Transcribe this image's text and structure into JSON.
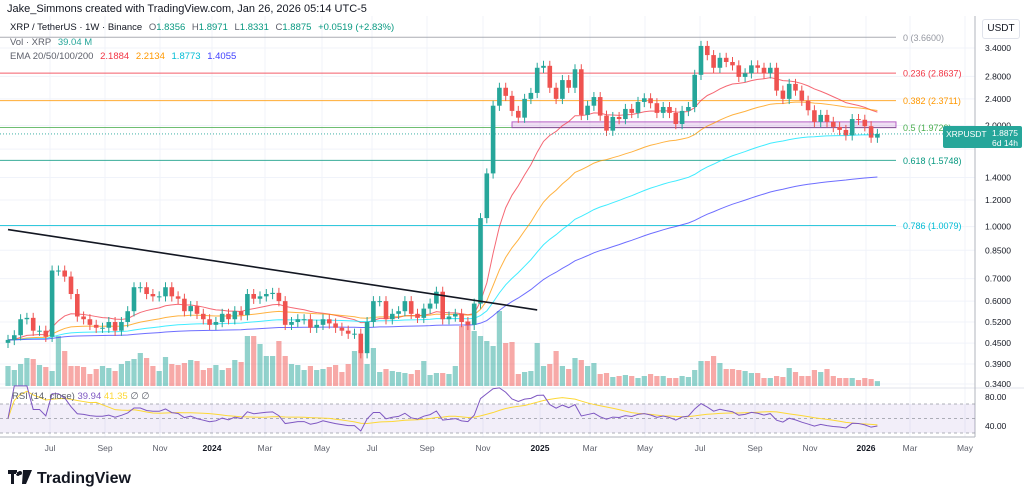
{
  "header": {
    "credit": "Jake_Simmons created with TradingView.com, Jan 26, 2026 05:14 UTC-5",
    "symbol": "XRP / TetherUS · 1W · Binance",
    "o_label": "O",
    "o": "1.8356",
    "h_label": "H",
    "h": "1.8971",
    "l_label": "L",
    "l": "1.8331",
    "c_label": "C",
    "c": "1.8875",
    "change": "+0.0519 (+2.83%)",
    "vol_label": "Vol · XRP",
    "vol": "39.04 M",
    "ema_label": "EMA 20/50/100/200",
    "ema20": "2.1884",
    "ema50": "2.2134",
    "ema100": "1.8773",
    "ema200": "1.4055"
  },
  "colors": {
    "up": "#26a69a",
    "down": "#ef5350",
    "ema20": "#f23645",
    "ema50": "#ff9800",
    "ema100": "#00e5ff",
    "ema200": "#3d3dff",
    "rsi": "#7e57c2",
    "rsi_ma": "#fdd835",
    "trendline": "#131722"
  },
  "price_tag": {
    "symbol": "XRPUSDT",
    "price": "1.8875",
    "countdown": "6d 14h"
  },
  "rsi": {
    "label": "RSI (14, close)",
    "value": "39.94",
    "ma": "41.35",
    "icons": [
      "∅",
      "∅"
    ]
  },
  "logo": {
    "mark": "TV",
    "text": "TradingView"
  },
  "chart_data": {
    "type": "candlestick",
    "title": "XRP / TetherUS · 1W · Binance",
    "y_scale": "log",
    "y_unit": "USDT",
    "y_ticks": [
      "3.4000",
      "2.8000",
      "2.4000",
      "2.0000",
      "1.7000",
      "1.4000",
      "1.2000",
      "1.0000",
      "0.8500",
      "0.7000",
      "0.6000",
      "0.5200",
      "0.4500",
      "0.3900",
      "0.3400"
    ],
    "x_ticks": [
      "Jul",
      "Sep",
      "Nov",
      "2024",
      "Mar",
      "May",
      "Jul",
      "Sep",
      "Nov",
      "2025",
      "Mar",
      "May",
      "Jul",
      "Sep",
      "Nov",
      "2026",
      "Mar",
      "May"
    ],
    "rsi_ticks": [
      "80.00",
      "40.00"
    ],
    "grid": true,
    "closes": [
      0.46,
      0.475,
      0.53,
      0.535,
      0.49,
      0.49,
      0.47,
      0.74,
      0.74,
      0.71,
      0.63,
      0.54,
      0.53,
      0.51,
      0.5,
      0.5,
      0.52,
      0.49,
      0.52,
      0.56,
      0.66,
      0.66,
      0.63,
      0.62,
      0.62,
      0.66,
      0.62,
      0.61,
      0.56,
      0.58,
      0.55,
      0.53,
      0.51,
      0.52,
      0.55,
      0.53,
      0.56,
      0.545,
      0.63,
      0.61,
      0.62,
      0.63,
      0.635,
      0.6,
      0.51,
      0.52,
      0.53,
      0.53,
      0.5,
      0.51,
      0.53,
      0.515,
      0.5,
      0.49,
      0.48,
      0.48,
      0.42,
      0.52,
      0.6,
      0.6,
      0.53,
      0.55,
      0.56,
      0.6,
      0.55,
      0.535,
      0.57,
      0.59,
      0.64,
      0.53,
      0.54,
      0.55,
      0.52,
      0.51,
      0.59,
      1.06,
      1.44,
      2.29,
      2.59,
      2.45,
      2.21,
      2.11,
      2.4,
      2.5,
      2.97,
      3.01,
      2.59,
      2.4,
      2.73,
      2.59,
      2.94,
      2.15,
      2.29,
      2.43,
      2.14,
      1.93,
      2.12,
      2.09,
      2.24,
      2.18,
      2.35,
      2.41,
      2.33,
      2.18,
      2.27,
      2.18,
      2.02,
      2.21,
      2.27,
      2.83,
      3.45,
      3.24,
      2.97,
      3.18,
      3.09,
      3.02,
      2.79,
      2.86,
      3.02,
      2.97,
      2.86,
      2.97,
      2.54,
      2.4,
      2.66,
      2.54,
      2.37,
      2.22,
      2.05,
      2.15,
      2.05,
      1.98,
      1.94,
      1.87,
      2.09,
      2.08,
      1.99,
      1.84,
      1.8875
    ],
    "volume_m": [
      160,
      128,
      176,
      224,
      216,
      168,
      152,
      120,
      400,
      280,
      160,
      160,
      152,
      96,
      136,
      160,
      144,
      120,
      176,
      200,
      216,
      264,
      224,
      160,
      120,
      232,
      176,
      168,
      184,
      208,
      200,
      128,
      144,
      168,
      128,
      144,
      208,
      192,
      400,
      400,
      336,
      240,
      240,
      360,
      240,
      176,
      168,
      128,
      160,
      128,
      136,
      152,
      168,
      112,
      176,
      280,
      288,
      176,
      304,
      112,
      136,
      120,
      112,
      104,
      96,
      128,
      200,
      88,
      104,
      104,
      96,
      160,
      480,
      520,
      440,
      400,
      360,
      320,
      600,
      344,
      352,
      96,
      112,
      120,
      344,
      160,
      176,
      280,
      160,
      136,
      224,
      208,
      160,
      184,
      96,
      104,
      72,
      80,
      88,
      80,
      64,
      80,
      96,
      80,
      80,
      64,
      64,
      80,
      72,
      128,
      200,
      200,
      240,
      184,
      136,
      136,
      128,
      120,
      104,
      104,
      64,
      64,
      80,
      72,
      144,
      112,
      80,
      80,
      128,
      112,
      136,
      80,
      64,
      64,
      64,
      48,
      64,
      56,
      39.04
    ],
    "fib_levels": [
      {
        "label": "0 (3.6600)",
        "price": 3.66,
        "color": "#9598a1"
      },
      {
        "label": "0.236 (2.8637)",
        "price": 2.8637,
        "color": "#f23645"
      },
      {
        "label": "0.382 (2.3711)",
        "price": 2.3711,
        "color": "#ff9800"
      },
      {
        "label": "0.5 (1.9729)",
        "price": 1.9729,
        "color": "#4caf50"
      },
      {
        "label": "0.618 (1.5748)",
        "price": 1.5748,
        "color": "#089981"
      },
      {
        "label": "0.786 (1.0079)",
        "price": 1.0079,
        "color": "#00bcd4"
      }
    ],
    "zone": {
      "top": 2.05,
      "bottom": 1.97,
      "color": "#9c27b0"
    },
    "trendline": {
      "start_price": 0.98,
      "end_price": 0.565
    },
    "rsi_bands": {
      "upper": 70,
      "middle": 50,
      "lower": 30
    }
  }
}
